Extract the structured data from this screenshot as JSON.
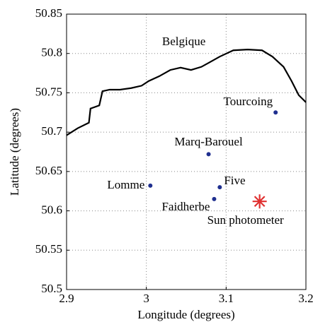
{
  "chart_data": {
    "type": "scatter",
    "xlabel": "Longitude (degrees)",
    "ylabel": "Latitude (degrees)",
    "xlim": [
      2.9,
      3.2
    ],
    "xticks": [
      2.9,
      3,
      3.1,
      3.2
    ],
    "ylim": [
      50.5,
      50.85
    ],
    "yticks": [
      50.5,
      50.55,
      50.6,
      50.65,
      50.7,
      50.75,
      50.8,
      50.85
    ],
    "grid": true,
    "border": {
      "color": "#000000",
      "x": [
        2.9,
        2.914,
        2.928,
        2.93,
        2.941,
        2.945,
        2.954,
        2.967,
        2.981,
        2.994,
        3.003,
        3.016,
        3.03,
        3.043,
        3.056,
        3.069,
        3.078,
        3.092,
        3.109,
        3.127,
        3.145,
        3.158,
        3.172,
        3.182,
        3.191,
        3.2
      ],
      "y": [
        50.696,
        50.705,
        50.712,
        50.73,
        50.734,
        50.752,
        50.754,
        50.754,
        50.756,
        50.759,
        50.765,
        50.771,
        50.779,
        50.782,
        50.779,
        50.783,
        50.788,
        50.796,
        50.804,
        50.805,
        50.804,
        50.796,
        50.783,
        50.765,
        50.747,
        50.738
      ]
    },
    "sites": [
      {
        "name": "Tourcoing",
        "x": 3.162,
        "y": 50.725,
        "color": "#1f2f8f"
      },
      {
        "name": "Marq-Barouel",
        "x": 3.078,
        "y": 50.672,
        "color": "#1f2f8f"
      },
      {
        "name": "Lomme",
        "x": 3.005,
        "y": 50.632,
        "color": "#1f2f8f"
      },
      {
        "name": "Five",
        "x": 3.092,
        "y": 50.63,
        "color": "#1f2f8f"
      },
      {
        "name": "Faidherbe",
        "x": 3.085,
        "y": 50.615,
        "color": "#1f2f8f"
      },
      {
        "name": "Sun photometer",
        "x": 3.142,
        "y": 50.612,
        "color": "#e03030",
        "marker": "star"
      }
    ],
    "annotations": [
      {
        "text": "Belgique",
        "x": 3.047,
        "y": 50.814
      }
    ]
  }
}
